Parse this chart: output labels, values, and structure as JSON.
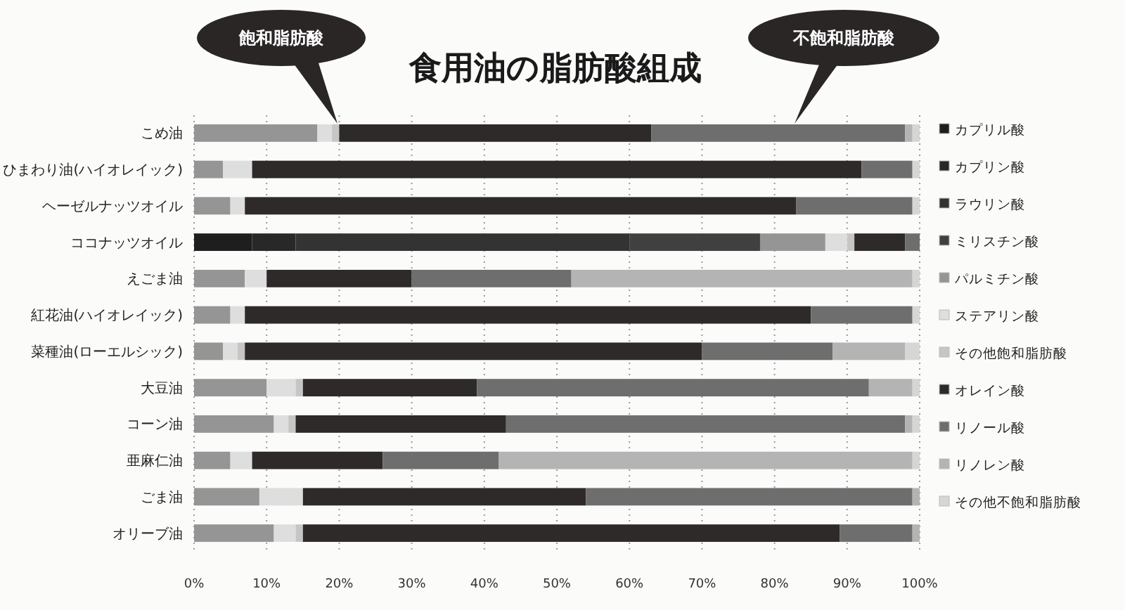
{
  "chart_data": {
    "type": "bar",
    "orientation": "horizontal",
    "stacked": true,
    "title": "食用油の脂肪酸組成",
    "categories": [
      "こめ油",
      "ひまわり油(ハイオレイック)",
      "ヘーゼルナッツオイル",
      "ココナッツオイル",
      "えごま油",
      "紅花油(ハイオレイック)",
      "菜種油(ローエルシック)",
      "大豆油",
      "コーン油",
      "亜麻仁油",
      "ごま油",
      "オリーブ油"
    ],
    "series": [
      {
        "name": "カプリル酸",
        "color": "#1e1e1e",
        "values": [
          0,
          0,
          0,
          8,
          0,
          0,
          0,
          0,
          0,
          0,
          0,
          0
        ]
      },
      {
        "name": "カプリン酸",
        "color": "#282828",
        "values": [
          0,
          0,
          0,
          6,
          0,
          0,
          0,
          0,
          0,
          0,
          0,
          0
        ]
      },
      {
        "name": "ラウリン酸",
        "color": "#333333",
        "values": [
          0,
          0,
          0,
          46,
          0,
          0,
          0,
          0,
          0,
          0,
          0,
          0
        ]
      },
      {
        "name": "ミリスチン酸",
        "color": "#404040",
        "values": [
          0,
          0,
          0,
          18,
          0,
          0,
          0,
          0,
          0,
          0,
          0,
          0
        ]
      },
      {
        "name": "パルミチン酸",
        "color": "#959595",
        "values": [
          17,
          4,
          5,
          9,
          7,
          5,
          4,
          10,
          11,
          5,
          9,
          11
        ]
      },
      {
        "name": "ステアリン酸",
        "color": "#dedede",
        "values": [
          2,
          4,
          2,
          3,
          3,
          2,
          2,
          4,
          2,
          3,
          6,
          3
        ]
      },
      {
        "name": "その他飽和脂肪酸",
        "color": "#c6c6c6",
        "values": [
          1,
          0,
          0,
          1,
          0,
          0,
          1,
          1,
          1,
          0,
          0,
          1
        ]
      },
      {
        "name": "オレイン酸",
        "color": "#2e2a2a",
        "values": [
          43,
          84,
          76,
          7,
          20,
          78,
          63,
          24,
          29,
          18,
          39,
          74
        ]
      },
      {
        "name": "リノール酸",
        "color": "#6e6e6e",
        "values": [
          35,
          7,
          16,
          2,
          22,
          14,
          18,
          54,
          55,
          16,
          45,
          10
        ]
      },
      {
        "name": "リノレン酸",
        "color": "#b4b4b4",
        "values": [
          1,
          0,
          0,
          0,
          47,
          0,
          10,
          6,
          1,
          57,
          1,
          1
        ]
      },
      {
        "name": "その他不飽和脂肪酸",
        "color": "#d6d6d6",
        "values": [
          1,
          1,
          1,
          0,
          1,
          1,
          2,
          1,
          1,
          1,
          0,
          0
        ]
      }
    ],
    "xlim": [
      0,
      100
    ],
    "xticks": [
      {
        "value": 0,
        "label": "0%"
      },
      {
        "value": 10,
        "label": "10%"
      },
      {
        "value": 20,
        "label": "20%"
      },
      {
        "value": 30,
        "label": "30%"
      },
      {
        "value": 40,
        "label": "40%"
      },
      {
        "value": 50,
        "label": "50%"
      },
      {
        "value": 60,
        "label": "60%"
      },
      {
        "value": 70,
        "label": "70%"
      },
      {
        "value": 80,
        "label": "80%"
      },
      {
        "value": 90,
        "label": "90%"
      },
      {
        "value": 100,
        "label": "100%"
      }
    ],
    "grid": "x",
    "legend": "right",
    "annotations": [
      "飽和脂肪酸",
      "不飽和脂肪酸"
    ]
  }
}
